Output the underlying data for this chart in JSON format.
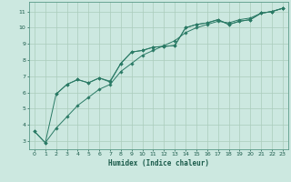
{
  "xlabel": "Humidex (Indice chaleur)",
  "bg_color": "#cce8e0",
  "grid_color": "#aaccbb",
  "line_color": "#2a7a65",
  "xlim": [
    -0.5,
    23.5
  ],
  "ylim": [
    2.5,
    11.6
  ],
  "xticks": [
    0,
    1,
    2,
    3,
    4,
    5,
    6,
    7,
    8,
    9,
    10,
    11,
    12,
    13,
    14,
    15,
    16,
    17,
    18,
    19,
    20,
    21,
    22,
    23
  ],
  "yticks": [
    3,
    4,
    5,
    6,
    7,
    8,
    9,
    10,
    11
  ],
  "series1": [
    [
      0,
      3.6
    ],
    [
      1,
      2.9
    ],
    [
      2,
      5.9
    ],
    [
      3,
      6.5
    ],
    [
      4,
      6.8
    ],
    [
      5,
      6.6
    ],
    [
      6,
      6.9
    ],
    [
      7,
      6.7
    ],
    [
      8,
      7.8
    ],
    [
      9,
      8.5
    ],
    [
      10,
      8.6
    ],
    [
      11,
      8.8
    ],
    [
      12,
      8.85
    ],
    [
      13,
      8.9
    ],
    [
      14,
      10.0
    ],
    [
      15,
      10.2
    ],
    [
      16,
      10.3
    ],
    [
      17,
      10.5
    ],
    [
      18,
      10.2
    ],
    [
      19,
      10.4
    ],
    [
      20,
      10.5
    ],
    [
      21,
      10.9
    ],
    [
      22,
      11.0
    ],
    [
      23,
      11.2
    ]
  ],
  "series2": [
    [
      0,
      3.6
    ],
    [
      1,
      2.9
    ],
    [
      2,
      3.8
    ],
    [
      3,
      4.5
    ],
    [
      4,
      5.2
    ],
    [
      5,
      5.7
    ],
    [
      6,
      6.2
    ],
    [
      7,
      6.5
    ],
    [
      8,
      7.3
    ],
    [
      9,
      7.8
    ],
    [
      10,
      8.3
    ],
    [
      11,
      8.6
    ],
    [
      12,
      8.9
    ],
    [
      13,
      9.2
    ],
    [
      14,
      9.7
    ],
    [
      15,
      10.0
    ],
    [
      16,
      10.2
    ],
    [
      17,
      10.4
    ],
    [
      18,
      10.3
    ],
    [
      19,
      10.5
    ],
    [
      20,
      10.6
    ],
    [
      21,
      10.9
    ],
    [
      22,
      11.0
    ],
    [
      23,
      11.2
    ]
  ],
  "series3": [
    [
      2,
      5.9
    ],
    [
      3,
      6.5
    ],
    [
      4,
      6.8
    ],
    [
      5,
      6.6
    ],
    [
      6,
      6.9
    ],
    [
      7,
      6.65
    ],
    [
      8,
      7.8
    ],
    [
      9,
      8.5
    ],
    [
      10,
      8.6
    ],
    [
      11,
      8.8
    ],
    [
      12,
      8.85
    ],
    [
      13,
      8.9
    ],
    [
      14,
      10.0
    ],
    [
      15,
      10.2
    ],
    [
      16,
      10.3
    ],
    [
      17,
      10.5
    ],
    [
      18,
      10.2
    ],
    [
      19,
      10.4
    ],
    [
      20,
      10.5
    ],
    [
      21,
      10.9
    ],
    [
      22,
      11.0
    ],
    [
      23,
      11.2
    ]
  ]
}
